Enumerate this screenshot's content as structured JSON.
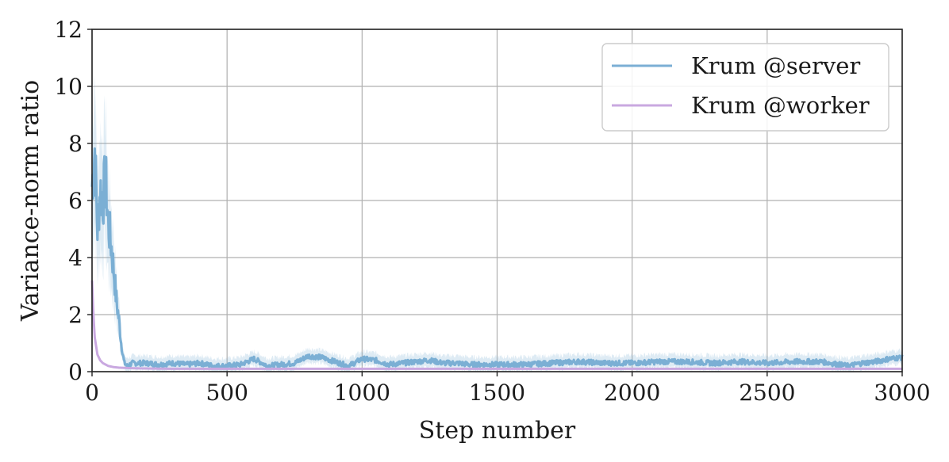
{
  "chart_data": {
    "type": "line",
    "xlabel": "Step number",
    "ylabel": "Variance-norm ratio",
    "xlim": [
      0,
      3000
    ],
    "ylim": [
      0,
      12
    ],
    "xticks": [
      0,
      500,
      1000,
      1500,
      2000,
      2500,
      3000
    ],
    "yticks": [
      0,
      2,
      4,
      6,
      8,
      10,
      12
    ],
    "grid": true,
    "legend_position": "top-right",
    "series": [
      {
        "name": "Krum @server",
        "color": "#7bafd4",
        "band": true,
        "x": [
          0,
          10,
          20,
          30,
          40,
          50,
          60,
          70,
          80,
          90,
          100,
          110,
          120,
          130,
          150,
          200,
          250,
          300,
          350,
          400,
          450,
          500,
          550,
          600,
          650,
          700,
          750,
          800,
          850,
          900,
          950,
          1000,
          1050,
          1100,
          1150,
          1200,
          1250,
          1300,
          1350,
          1400,
          1450,
          1500,
          1600,
          1700,
          1800,
          1900,
          2000,
          2100,
          2200,
          2300,
          2400,
          2500,
          2600,
          2700,
          2800,
          2850,
          2900,
          2950,
          3000
        ],
        "y": [
          6.5,
          7.8,
          5.0,
          6.4,
          6.0,
          6.8,
          5.2,
          4.5,
          3.6,
          2.5,
          1.8,
          0.8,
          0.3,
          0.2,
          0.3,
          0.3,
          0.25,
          0.3,
          0.25,
          0.3,
          0.2,
          0.2,
          0.25,
          0.45,
          0.2,
          0.25,
          0.3,
          0.55,
          0.5,
          0.35,
          0.2,
          0.45,
          0.4,
          0.25,
          0.3,
          0.35,
          0.4,
          0.3,
          0.3,
          0.25,
          0.25,
          0.25,
          0.25,
          0.3,
          0.35,
          0.3,
          0.3,
          0.35,
          0.35,
          0.3,
          0.35,
          0.3,
          0.35,
          0.35,
          0.2,
          0.3,
          0.35,
          0.45,
          0.5
        ]
      },
      {
        "name": "Krum @worker",
        "color": "#c9a8e0",
        "band": false,
        "x": [
          0,
          5,
          10,
          20,
          30,
          40,
          60,
          80,
          100,
          150,
          200,
          300,
          500,
          1000,
          1500,
          2000,
          2500,
          3000
        ],
        "y": [
          3.2,
          2.0,
          1.2,
          0.6,
          0.4,
          0.3,
          0.2,
          0.16,
          0.14,
          0.12,
          0.11,
          0.1,
          0.1,
          0.1,
          0.1,
          0.1,
          0.1,
          0.1
        ]
      }
    ]
  }
}
